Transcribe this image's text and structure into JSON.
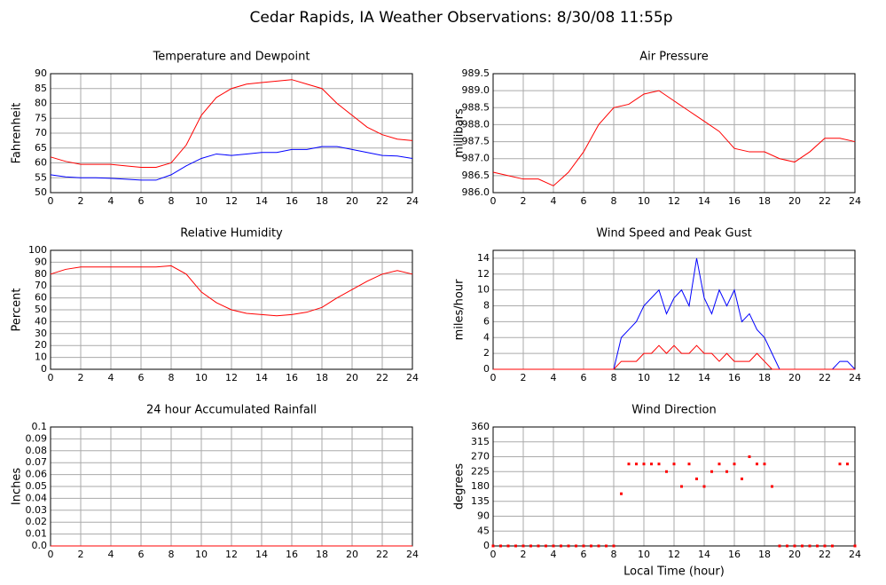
{
  "title": "Cedar Rapids, IA Weather Observations: 8/30/08 11:55p",
  "chart_data": [
    {
      "type": "line",
      "title": "Temperature and Dewpoint",
      "ylabel": "Fahrenheit",
      "grid": true,
      "x": [
        0,
        1,
        2,
        3,
        4,
        5,
        6,
        7,
        8,
        9,
        10,
        11,
        12,
        13,
        14,
        15,
        16,
        17,
        18,
        19,
        20,
        21,
        22,
        23,
        24
      ],
      "xlim": [
        0,
        24
      ],
      "xticks": [
        0,
        2,
        4,
        6,
        8,
        10,
        12,
        14,
        16,
        18,
        20,
        22,
        24
      ],
      "ylim": [
        50,
        90
      ],
      "yticks": [
        50,
        55,
        60,
        65,
        70,
        75,
        80,
        85,
        90
      ],
      "series": [
        {
          "name": "Temperature",
          "color": "#ff0000",
          "values": [
            62,
            60.5,
            59.5,
            59.5,
            59.5,
            59,
            58.5,
            58.5,
            60,
            66,
            76,
            82,
            85,
            86.5,
            87,
            87.5,
            88,
            86.5,
            85,
            80,
            76,
            72,
            69.5,
            68,
            67.5
          ]
        },
        {
          "name": "Dewpoint",
          "color": "#0000ff",
          "values": [
            56,
            55.3,
            55,
            55,
            54.8,
            54.5,
            54.2,
            54.2,
            56,
            59,
            61.5,
            63,
            62.5,
            63,
            63.5,
            63.5,
            64.5,
            64.5,
            65.5,
            65.5,
            64.5,
            63.5,
            62.5,
            62.3,
            61.5
          ]
        }
      ]
    },
    {
      "type": "line",
      "title": "Air Pressure",
      "ylabel": "millibars",
      "grid": true,
      "x": [
        0,
        1,
        2,
        3,
        4,
        5,
        6,
        7,
        8,
        9,
        10,
        11,
        12,
        13,
        14,
        15,
        16,
        17,
        18,
        19,
        20,
        21,
        22,
        23,
        24
      ],
      "xlim": [
        0,
        24
      ],
      "xticks": [
        0,
        2,
        4,
        6,
        8,
        10,
        12,
        14,
        16,
        18,
        20,
        22,
        24
      ],
      "ylim": [
        986,
        989.5
      ],
      "yticks": [
        {
          "value": 986,
          "label": "986.0"
        },
        {
          "value": 986.5,
          "label": "986.5"
        },
        {
          "value": 987,
          "label": "987.0"
        },
        {
          "value": 987.5,
          "label": "987.5"
        },
        {
          "value": 988,
          "label": "988.0"
        },
        {
          "value": 988.5,
          "label": "988.5"
        },
        {
          "value": 989,
          "label": "989.0"
        },
        {
          "value": 989.5,
          "label": "989.5"
        }
      ],
      "series": [
        {
          "name": "Pressure",
          "color": "#ff0000",
          "values": [
            986.6,
            986.5,
            986.4,
            986.4,
            986.2,
            986.6,
            987.2,
            988.0,
            988.5,
            988.6,
            988.9,
            989.0,
            988.7,
            988.4,
            988.1,
            987.8,
            987.3,
            987.2,
            987.2,
            987.0,
            986.9,
            987.2,
            987.6,
            987.6,
            987.5
          ]
        }
      ]
    },
    {
      "type": "line",
      "title": "Relative Humidity",
      "ylabel": "Percent",
      "grid": true,
      "x": [
        0,
        1,
        2,
        3,
        4,
        5,
        6,
        7,
        8,
        9,
        10,
        11,
        12,
        13,
        14,
        15,
        16,
        17,
        18,
        19,
        20,
        21,
        22,
        23,
        24
      ],
      "xlim": [
        0,
        24
      ],
      "xticks": [
        0,
        2,
        4,
        6,
        8,
        10,
        12,
        14,
        16,
        18,
        20,
        22,
        24
      ],
      "ylim": [
        0,
        100
      ],
      "yticks": [
        0,
        10,
        20,
        30,
        40,
        50,
        60,
        70,
        80,
        90,
        100
      ],
      "series": [
        {
          "name": "Humidity",
          "color": "#ff0000",
          "values": [
            80,
            84,
            86,
            86,
            86,
            86,
            86,
            86,
            87,
            80,
            65,
            56,
            50,
            47,
            46,
            45,
            46,
            48,
            52,
            60,
            67,
            74,
            80,
            83,
            80
          ]
        }
      ]
    },
    {
      "type": "line",
      "title": "Wind Speed and Peak Gust",
      "ylabel": "miles/hour",
      "grid": true,
      "x": [
        0,
        0.5,
        1,
        1.5,
        2,
        2.5,
        3,
        3.5,
        4,
        4.5,
        5,
        5.5,
        6,
        6.5,
        7,
        7.5,
        8,
        8.5,
        9,
        9.5,
        10,
        10.5,
        11,
        11.5,
        12,
        12.5,
        13,
        13.5,
        14,
        14.5,
        15,
        15.5,
        16,
        16.5,
        17,
        17.5,
        18,
        18.5,
        19,
        19.5,
        20,
        20.5,
        21,
        21.5,
        22,
        22.5,
        23,
        23.5,
        24
      ],
      "xlim": [
        0,
        24
      ],
      "xticks": [
        0,
        2,
        4,
        6,
        8,
        10,
        12,
        14,
        16,
        18,
        20,
        22,
        24
      ],
      "ylim": [
        0,
        15
      ],
      "yticks": [
        0,
        2,
        4,
        6,
        8,
        10,
        12,
        14
      ],
      "series": [
        {
          "name": "Peak Gust",
          "color": "#0000ff",
          "values": [
            0,
            0,
            0,
            0,
            0,
            0,
            0,
            0,
            0,
            0,
            0,
            0,
            0,
            0,
            0,
            0,
            0,
            4,
            5,
            6,
            8,
            9,
            10,
            7,
            9,
            10,
            8,
            14,
            9,
            7,
            10,
            8,
            10,
            6,
            7,
            5,
            4,
            2,
            0,
            0,
            0,
            0,
            0,
            0,
            0,
            0,
            1,
            1,
            0
          ]
        },
        {
          "name": "Wind Speed",
          "color": "#ff0000",
          "values": [
            0,
            0,
            0,
            0,
            0,
            0,
            0,
            0,
            0,
            0,
            0,
            0,
            0,
            0,
            0,
            0,
            0,
            1,
            1,
            1,
            2,
            2,
            3,
            2,
            3,
            2,
            2,
            3,
            2,
            2,
            1,
            2,
            1,
            1,
            1,
            2,
            1,
            0,
            0,
            0,
            0,
            0,
            0,
            0,
            0,
            0,
            0,
            0,
            0
          ]
        }
      ]
    },
    {
      "type": "line",
      "title": "24 hour Accumulated Rainfall",
      "ylabel": "Inches",
      "grid": true,
      "x": [
        0,
        24
      ],
      "xlim": [
        0,
        24
      ],
      "xticks": [
        0,
        2,
        4,
        6,
        8,
        10,
        12,
        14,
        16,
        18,
        20,
        22,
        24
      ],
      "ylim": [
        0,
        0.1
      ],
      "yticks": [
        {
          "value": 0,
          "label": "0.0"
        },
        0.01,
        0.02,
        0.03,
        0.04,
        0.05,
        0.06,
        0.07,
        0.08,
        0.09,
        0.1
      ],
      "series": [
        {
          "name": "Rainfall",
          "color": "#ff0000",
          "values": [
            0,
            0
          ]
        }
      ]
    },
    {
      "type": "scatter",
      "title": "Wind Direction",
      "ylabel": "degrees",
      "xlabel": "Local Time (hour)",
      "grid": true,
      "x": [
        0,
        0.5,
        1,
        1.5,
        2,
        2.5,
        3,
        3.5,
        4,
        4.5,
        5,
        5.5,
        6,
        6.5,
        7,
        7.5,
        8,
        8.5,
        9,
        9.5,
        10,
        10.5,
        11,
        11.5,
        12,
        12.5,
        13,
        13.5,
        14,
        14.5,
        15,
        15.5,
        16,
        16.5,
        17,
        17.5,
        18,
        18.5,
        19,
        19.5,
        20,
        20.5,
        21,
        21.5,
        22,
        22.5,
        23,
        23.5,
        24
      ],
      "xlim": [
        0,
        24
      ],
      "xticks": [
        0,
        2,
        4,
        6,
        8,
        10,
        12,
        14,
        16,
        18,
        20,
        22,
        24
      ],
      "ylim": [
        0,
        360
      ],
      "yticks": [
        0,
        45,
        90,
        135,
        180,
        225,
        270,
        315,
        360
      ],
      "series": [
        {
          "name": "Direction",
          "color": "#ff0000",
          "values": [
            0,
            0,
            0,
            0,
            0,
            0,
            0,
            0,
            0,
            0,
            0,
            0,
            0,
            0,
            0,
            0,
            0,
            158,
            248,
            248,
            248,
            248,
            248,
            225,
            248,
            180,
            248,
            203,
            180,
            225,
            248,
            225,
            248,
            203,
            270,
            248,
            248,
            180,
            0,
            0,
            0,
            0,
            0,
            0,
            0,
            0,
            248,
            248,
            0
          ]
        }
      ]
    }
  ]
}
